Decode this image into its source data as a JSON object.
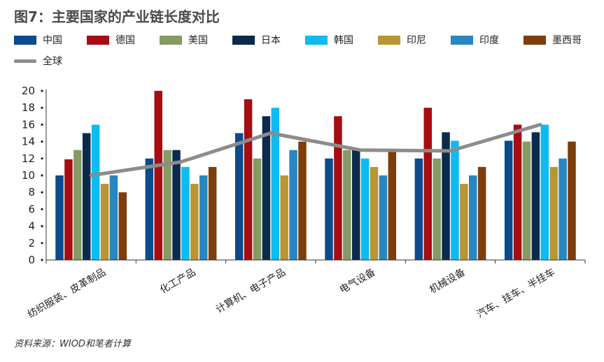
{
  "title": "图7：主要国家的产业链长度对比",
  "source": "资料来源：WIOD和笔者计算",
  "chart_data": {
    "type": "bar",
    "title": "图7：主要国家的产业链长度对比",
    "xlabel": "",
    "ylabel": "",
    "ylim": [
      0,
      20
    ],
    "yticks": [
      "0",
      "2",
      "4",
      "6",
      "8",
      "10",
      "12",
      "14",
      "16",
      "18",
      "20"
    ],
    "grid": false,
    "legend_position": "top",
    "categories": [
      "纺织服装、皮革制品",
      "化工产品",
      "计算机、电子产品",
      "电气设备",
      "机械设备",
      "汽车、挂车、半挂车"
    ],
    "series": [
      {
        "name": "中国",
        "color": "#0b4a8b",
        "values": [
          10,
          12,
          15,
          12,
          12,
          14.1
        ]
      },
      {
        "name": "德国",
        "color": "#a50d12",
        "values": [
          11.9,
          20,
          19,
          17,
          18,
          16
        ]
      },
      {
        "name": "美国",
        "color": "#869a63",
        "values": [
          13,
          13,
          12,
          13,
          12,
          14
        ]
      },
      {
        "name": "日本",
        "color": "#0c2a4c",
        "values": [
          15,
          13,
          17,
          13,
          15.1,
          15.1
        ]
      },
      {
        "name": "韩国",
        "color": "#0bbbf2",
        "values": [
          16,
          11,
          18,
          12,
          14.1,
          16
        ]
      },
      {
        "name": "印尼",
        "color": "#b99535",
        "values": [
          9,
          9,
          10,
          11,
          9,
          11
        ]
      },
      {
        "name": "印度",
        "color": "#2a86c0",
        "values": [
          10,
          10,
          13,
          10,
          10,
          12
        ]
      },
      {
        "name": "墨西哥",
        "color": "#7d3e0b",
        "values": [
          8,
          11,
          14,
          12.9,
          11,
          14
        ]
      }
    ],
    "line_series": {
      "name": "全球",
      "color": "#8c8c8c",
      "values": [
        10,
        11.6,
        15,
        13,
        12.9,
        16
      ]
    }
  }
}
